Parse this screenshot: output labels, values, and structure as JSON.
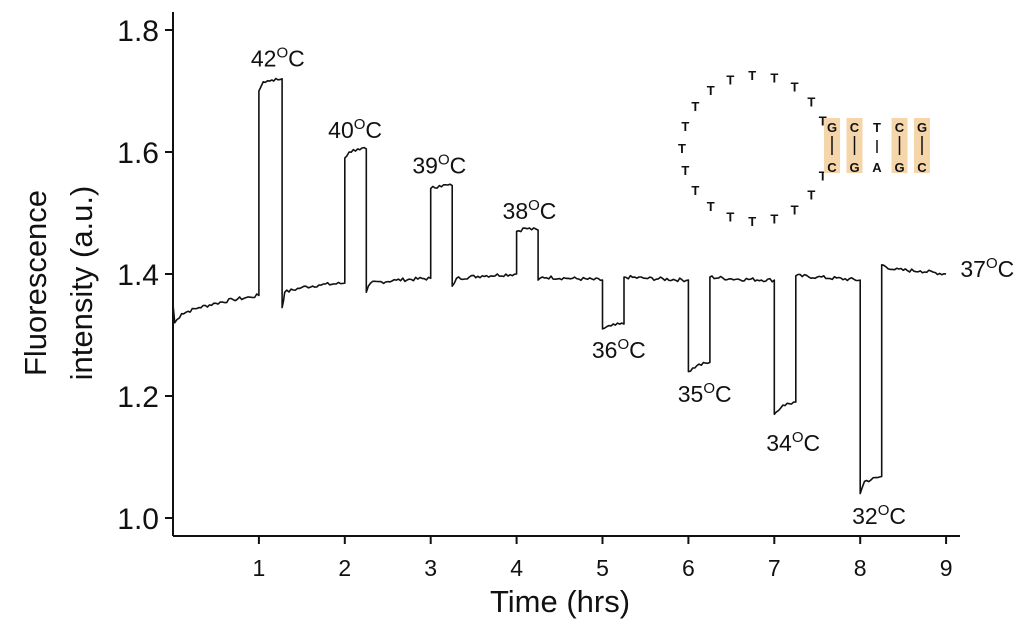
{
  "chart_data": {
    "type": "line",
    "xlabel": "Time (hrs)",
    "ylabel": [
      "Fluorescence",
      "intensity (a.u.)"
    ],
    "xlim": [
      0,
      9.2
    ],
    "ylim": [
      0.98,
      1.83
    ],
    "x_ticks": [
      1,
      2,
      3,
      4,
      5,
      6,
      7,
      8,
      9
    ],
    "y_ticks": [
      1.0,
      1.2,
      1.4,
      1.6,
      1.8
    ],
    "y_tick_labels": [
      "1.0",
      "1.2",
      "1.4",
      "1.6",
      "1.8"
    ],
    "grid": false,
    "series": [
      {
        "color": "#111111",
        "points": [
          [
            0.0,
            1.35
          ],
          [
            0.02,
            1.32
          ],
          [
            0.1,
            1.335
          ],
          [
            0.3,
            1.345
          ],
          [
            0.5,
            1.352
          ],
          [
            0.7,
            1.358
          ],
          [
            0.9,
            1.362
          ],
          [
            1.0,
            1.365
          ],
          [
            1.0,
            1.7
          ],
          [
            1.05,
            1.715
          ],
          [
            1.15,
            1.718
          ],
          [
            1.27,
            1.72
          ],
          [
            1.27,
            1.345
          ],
          [
            1.3,
            1.37
          ],
          [
            1.5,
            1.378
          ],
          [
            1.7,
            1.382
          ],
          [
            2.0,
            1.385
          ],
          [
            2.0,
            1.59
          ],
          [
            2.05,
            1.6
          ],
          [
            2.15,
            1.605
          ],
          [
            2.25,
            1.605
          ],
          [
            2.25,
            1.37
          ],
          [
            2.3,
            1.385
          ],
          [
            2.6,
            1.39
          ],
          [
            3.0,
            1.393
          ],
          [
            3.0,
            1.54
          ],
          [
            3.1,
            1.545
          ],
          [
            3.25,
            1.545
          ],
          [
            3.25,
            1.38
          ],
          [
            3.3,
            1.393
          ],
          [
            3.6,
            1.397
          ],
          [
            4.0,
            1.4
          ],
          [
            4.0,
            1.47
          ],
          [
            4.1,
            1.475
          ],
          [
            4.25,
            1.472
          ],
          [
            4.25,
            1.39
          ],
          [
            4.3,
            1.395
          ],
          [
            4.6,
            1.393
          ],
          [
            5.0,
            1.39
          ],
          [
            5.0,
            1.31
          ],
          [
            5.1,
            1.315
          ],
          [
            5.25,
            1.318
          ],
          [
            5.25,
            1.395
          ],
          [
            5.5,
            1.393
          ],
          [
            6.0,
            1.39
          ],
          [
            6.0,
            1.24
          ],
          [
            6.1,
            1.25
          ],
          [
            6.25,
            1.255
          ],
          [
            6.25,
            1.395
          ],
          [
            6.5,
            1.392
          ],
          [
            7.0,
            1.39
          ],
          [
            7.0,
            1.17
          ],
          [
            7.1,
            1.185
          ],
          [
            7.25,
            1.19
          ],
          [
            7.25,
            1.397
          ],
          [
            7.5,
            1.395
          ],
          [
            8.0,
            1.39
          ],
          [
            8.0,
            1.04
          ],
          [
            8.05,
            1.06
          ],
          [
            8.25,
            1.068
          ],
          [
            8.25,
            1.415
          ],
          [
            8.4,
            1.407
          ],
          [
            8.7,
            1.405
          ],
          [
            9.0,
            1.4
          ]
        ]
      }
    ],
    "annotations": [
      {
        "text": "42",
        "unit": "C",
        "x": 1.22,
        "y": 1.74
      },
      {
        "text": "40",
        "unit": "C",
        "x": 2.12,
        "y": 1.623
      },
      {
        "text": "39",
        "unit": "C",
        "x": 3.1,
        "y": 1.565
      },
      {
        "text": "38",
        "unit": "C",
        "x": 4.15,
        "y": 1.49
      },
      {
        "text": "36",
        "unit": "C",
        "x": 5.19,
        "y": 1.262
      },
      {
        "text": "35",
        "unit": "C",
        "x": 6.19,
        "y": 1.19
      },
      {
        "text": "34",
        "unit": "C",
        "x": 7.22,
        "y": 1.11
      },
      {
        "text": "32",
        "unit": "C",
        "x": 8.22,
        "y": 0.99
      },
      {
        "text": "37",
        "unit": "C",
        "x": 9.48,
        "y": 1.395
      }
    ],
    "degree_symbol": "O",
    "inset": {
      "loop_letter": "T",
      "loop_count": 19,
      "stem_top": [
        "G",
        "C",
        "T",
        "C",
        "G"
      ],
      "stem_bottom": [
        "C",
        "G",
        "A",
        "G",
        "C"
      ],
      "highlight_color": "#f5d5aa"
    }
  }
}
